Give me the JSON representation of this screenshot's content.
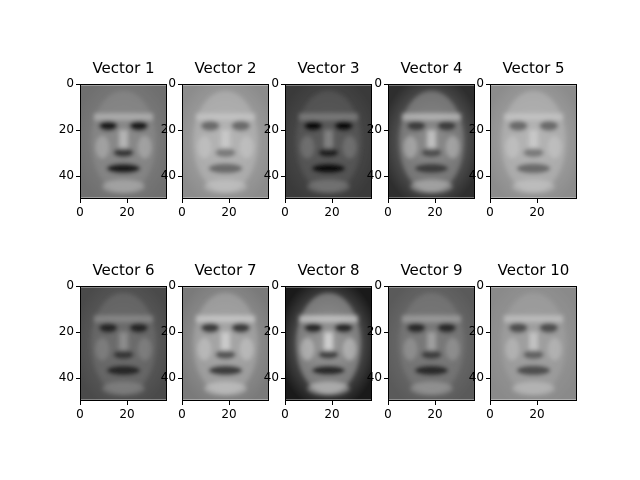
{
  "colors": {
    "colormap": "gray",
    "background": "#ffffff"
  },
  "chart_data": {
    "type": "heatmap",
    "description_grid": "2 rows x 5 columns of eigenface images",
    "x_ticks": [
      "0",
      "20"
    ],
    "y_ticks": [
      "0",
      "20",
      "40"
    ],
    "xlim": [
      0,
      37
    ],
    "ylim": [
      50,
      0
    ],
    "panels": [
      {
        "title": "Vector 1",
        "tone": "dark-face"
      },
      {
        "title": "Vector 2",
        "tone": "light-smooth"
      },
      {
        "title": "Vector 3",
        "tone": "dark-top"
      },
      {
        "title": "Vector 4",
        "tone": "dark-frame"
      },
      {
        "title": "Vector 5",
        "tone": "light-smooth"
      },
      {
        "title": "Vector 6",
        "tone": "mid-dark"
      },
      {
        "title": "Vector 7",
        "tone": "mid-light"
      },
      {
        "title": "Vector 8",
        "tone": "high-contrast"
      },
      {
        "title": "Vector 9",
        "tone": "mid-gray"
      },
      {
        "title": "Vector 10",
        "tone": "light-detailed"
      }
    ]
  }
}
